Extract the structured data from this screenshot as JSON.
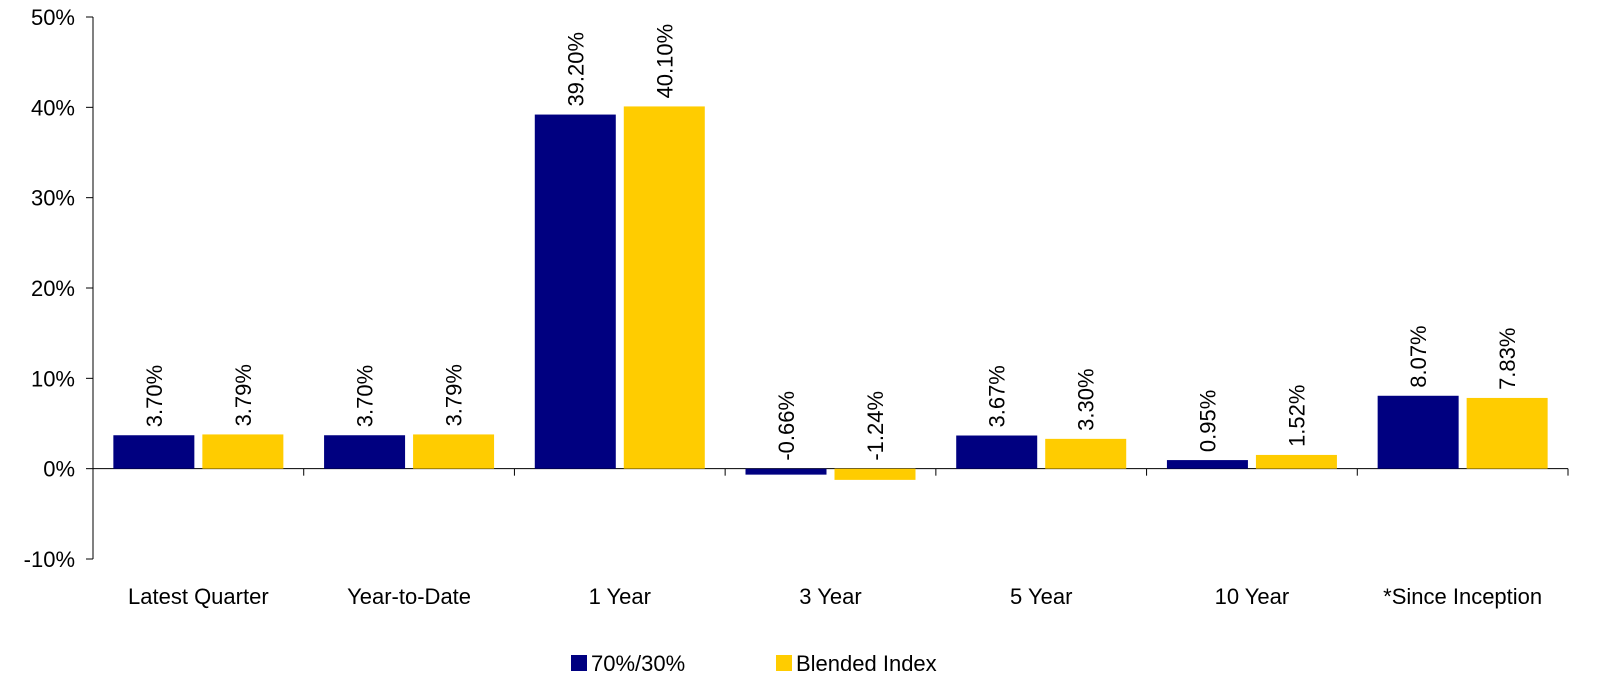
{
  "chart_data": {
    "type": "bar",
    "categories": [
      "Latest Quarter",
      "Year-to-Date",
      "1 Year",
      "3 Year",
      "5 Year",
      "10 Year",
      "*Since Inception"
    ],
    "series": [
      {
        "name": "70%/30%",
        "color": "#000080",
        "values": [
          3.7,
          3.7,
          39.2,
          -0.66,
          3.67,
          0.95,
          8.07
        ],
        "labels": [
          "3.70%",
          "3.70%",
          "39.20%",
          "-0.66%",
          "3.67%",
          "0.95%",
          "8.07%"
        ]
      },
      {
        "name": "Blended Index",
        "color": "#FFCC00",
        "values": [
          3.79,
          3.79,
          40.1,
          -1.24,
          3.3,
          1.52,
          7.83
        ],
        "labels": [
          "3.79%",
          "3.79%",
          "40.10%",
          "-1.24%",
          "3.30%",
          "1.52%",
          "7.83%"
        ]
      }
    ],
    "ylim": [
      -10,
      50
    ],
    "yticks": [
      -10,
      0,
      10,
      20,
      30,
      40,
      50
    ],
    "ytick_labels": [
      "-10%",
      "0%",
      "10%",
      "20%",
      "30%",
      "40%",
      "50%"
    ],
    "title": "",
    "xlabel": "",
    "ylabel": "",
    "grid": false,
    "legend_position": "bottom"
  }
}
